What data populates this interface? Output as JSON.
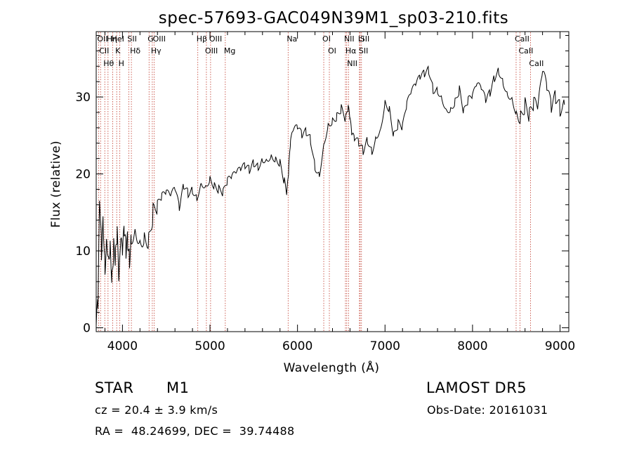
{
  "chart_data": {
    "type": "line",
    "title": "spec-57693-GAC049N39M1_sp03-210.fits",
    "xlabel": "Wavelength (Å)",
    "ylabel": "Flux (relative)",
    "xlim": [
      3700,
      9100
    ],
    "ylim": [
      -0.5,
      38.5
    ],
    "xticks": [
      4000,
      5000,
      6000,
      7000,
      8000,
      9000
    ],
    "yticks": [
      0,
      10,
      20,
      30
    ],
    "grid": false,
    "series": [
      {
        "x": [
          3700,
          3720,
          3740,
          3760,
          3780,
          3800,
          3820,
          3840,
          3860,
          3880,
          3900,
          3920,
          3940,
          3960,
          3980,
          4000,
          4020,
          4040,
          4060,
          4080,
          4100,
          4150,
          4200,
          4250,
          4300,
          4350,
          4400,
          4450,
          4500,
          4550,
          4600,
          4650,
          4700,
          4750,
          4800,
          4850,
          4900,
          4950,
          5000,
          5050,
          5100,
          5150,
          5200,
          5250,
          5300,
          5350,
          5400,
          5450,
          5500,
          5550,
          5600,
          5650,
          5700,
          5750,
          5800,
          5850,
          5880,
          5900,
          5920,
          5950,
          6000,
          6050,
          6100,
          6150,
          6200,
          6250,
          6300,
          6350,
          6400,
          6450,
          6500,
          6550,
          6580,
          6600,
          6620,
          6650,
          6700,
          6750,
          6800,
          6850,
          6900,
          6950,
          7000,
          7050,
          7100,
          7150,
          7200,
          7250,
          7300,
          7350,
          7400,
          7450,
          7500,
          7550,
          7600,
          7650,
          7700,
          7750,
          7800,
          7850,
          7900,
          7950,
          8000,
          8050,
          8100,
          8150,
          8200,
          8250,
          8300,
          8350,
          8400,
          8450,
          8500,
          8550,
          8600,
          8650,
          8700,
          8750,
          8800,
          8850,
          8900,
          8950,
          9000,
          9050
        ],
        "values": [
          0.3,
          3.0,
          17.0,
          10.0,
          14.0,
          8.0,
          12.0,
          9.5,
          11.0,
          6.5,
          10.5,
          9.0,
          12.0,
          5.5,
          11.0,
          9.5,
          12.5,
          10.0,
          11.5,
          9.0,
          12.0,
          13.0,
          11.5,
          12.0,
          11.5,
          15.0,
          16.0,
          17.0,
          17.5,
          17.0,
          18.0,
          15.5,
          18.5,
          17.5,
          18.0,
          17.0,
          19.0,
          18.5,
          19.5,
          18.5,
          18.0,
          17.5,
          19.0,
          19.5,
          20.0,
          20.5,
          21.0,
          20.5,
          21.5,
          21.0,
          22.0,
          22.0,
          22.5,
          22.0,
          21.5,
          19.0,
          17.5,
          20.5,
          24.0,
          25.5,
          26.0,
          25.0,
          25.5,
          24.5,
          21.0,
          20.0,
          24.0,
          26.5,
          27.0,
          27.5,
          28.5,
          27.0,
          28.5,
          27.0,
          25.0,
          24.5,
          24.0,
          23.0,
          24.5,
          23.0,
          25.0,
          26.0,
          29.5,
          28.5,
          25.0,
          26.5,
          26.0,
          29.0,
          30.5,
          31.5,
          32.5,
          33.0,
          33.5,
          31.0,
          31.0,
          30.0,
          28.5,
          28.5,
          29.5,
          31.0,
          28.0,
          29.5,
          30.0,
          31.5,
          31.0,
          29.5,
          30.5,
          32.5,
          33.5,
          32.0,
          30.5,
          30.0,
          28.0,
          27.5,
          29.0,
          27.5,
          29.0,
          28.5,
          33.0,
          31.0,
          28.5,
          30.0,
          28.5,
          29.0
        ]
      }
    ],
    "lines": [
      {
        "x": 3727,
        "label": "OII"
      },
      {
        "x": 3750,
        "label": "CII"
      },
      {
        "x": 3798,
        "label": "Hθ"
      },
      {
        "x": 3835,
        "label": "Hη"
      },
      {
        "x": 3889,
        "label": "HeI"
      },
      {
        "x": 3934,
        "label": "K"
      },
      {
        "x": 3970,
        "label": "H"
      },
      {
        "x": 4072,
        "label": "SII"
      },
      {
        "x": 4102,
        "label": "Hδ"
      },
      {
        "x": 4304,
        "label": "G"
      },
      {
        "x": 4341,
        "label": "Hγ"
      },
      {
        "x": 4363,
        "label": "OIII"
      },
      {
        "x": 4861,
        "label": "Hβ"
      },
      {
        "x": 4959,
        "label": "OIII"
      },
      {
        "x": 5007,
        "label": "OIII"
      },
      {
        "x": 5175,
        "label": "Mg"
      },
      {
        "x": 5893,
        "label": "Na"
      },
      {
        "x": 6300,
        "label": "OI"
      },
      {
        "x": 6364,
        "label": "OI"
      },
      {
        "x": 6548,
        "label": "NII"
      },
      {
        "x": 6563,
        "label": "Hα"
      },
      {
        "x": 6583,
        "label": "NII"
      },
      {
        "x": 6708,
        "label": "Li"
      },
      {
        "x": 6716,
        "label": "SII"
      },
      {
        "x": 6731,
        "label": "SII"
      },
      {
        "x": 8498,
        "label": "CaII"
      },
      {
        "x": 8542,
        "label": "CaII"
      },
      {
        "x": 8662,
        "label": "CaII"
      }
    ]
  },
  "info": {
    "class_label": "STAR",
    "subclass_label": "M1",
    "survey": "LAMOST DR5",
    "cz_label": "cz = 20.4 ± 3.9 km/s",
    "obs_date_label": "Obs-Date: 20161031",
    "radec_label": "RA =  48.24699, DEC =  39.74488"
  }
}
